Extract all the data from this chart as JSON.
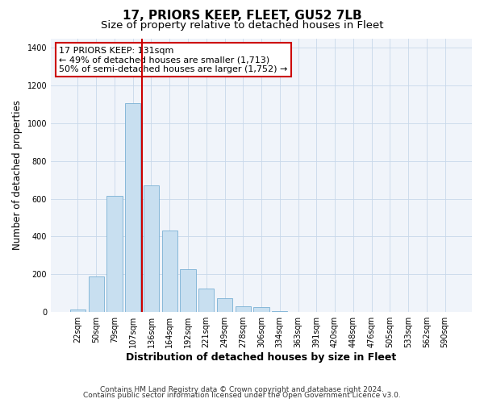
{
  "title": "17, PRIORS KEEP, FLEET, GU52 7LB",
  "subtitle": "Size of property relative to detached houses in Fleet",
  "xlabel": "Distribution of detached houses by size in Fleet",
  "ylabel": "Number of detached properties",
  "bar_labels": [
    "22sqm",
    "50sqm",
    "79sqm",
    "107sqm",
    "136sqm",
    "164sqm",
    "192sqm",
    "221sqm",
    "249sqm",
    "278sqm",
    "306sqm",
    "334sqm",
    "363sqm",
    "391sqm",
    "420sqm",
    "448sqm",
    "476sqm",
    "505sqm",
    "533sqm",
    "562sqm",
    "590sqm"
  ],
  "bar_values": [
    15,
    190,
    615,
    1105,
    670,
    430,
    225,
    125,
    75,
    30,
    25,
    5,
    3,
    2,
    1,
    1,
    0,
    0,
    0,
    0,
    0
  ],
  "bar_color": "#c8dff0",
  "bar_edge_color": "#7ab0d4",
  "vline_color": "#cc0000",
  "annotation_text": "17 PRIORS KEEP: 131sqm\n← 49% of detached houses are smaller (1,713)\n50% of semi-detached houses are larger (1,752) →",
  "annotation_box_color": "#ffffff",
  "annotation_box_edge_color": "#cc0000",
  "ylim": [
    0,
    1450
  ],
  "yticks": [
    0,
    200,
    400,
    600,
    800,
    1000,
    1200,
    1400
  ],
  "footer_line1": "Contains HM Land Registry data © Crown copyright and database right 2024.",
  "footer_line2": "Contains public sector information licensed under the Open Government Licence v3.0.",
  "title_fontsize": 11,
  "subtitle_fontsize": 9.5,
  "xlabel_fontsize": 9,
  "ylabel_fontsize": 8.5,
  "tick_fontsize": 7,
  "annotation_fontsize": 8,
  "footer_fontsize": 6.5,
  "bg_color": "#f0f4fa"
}
